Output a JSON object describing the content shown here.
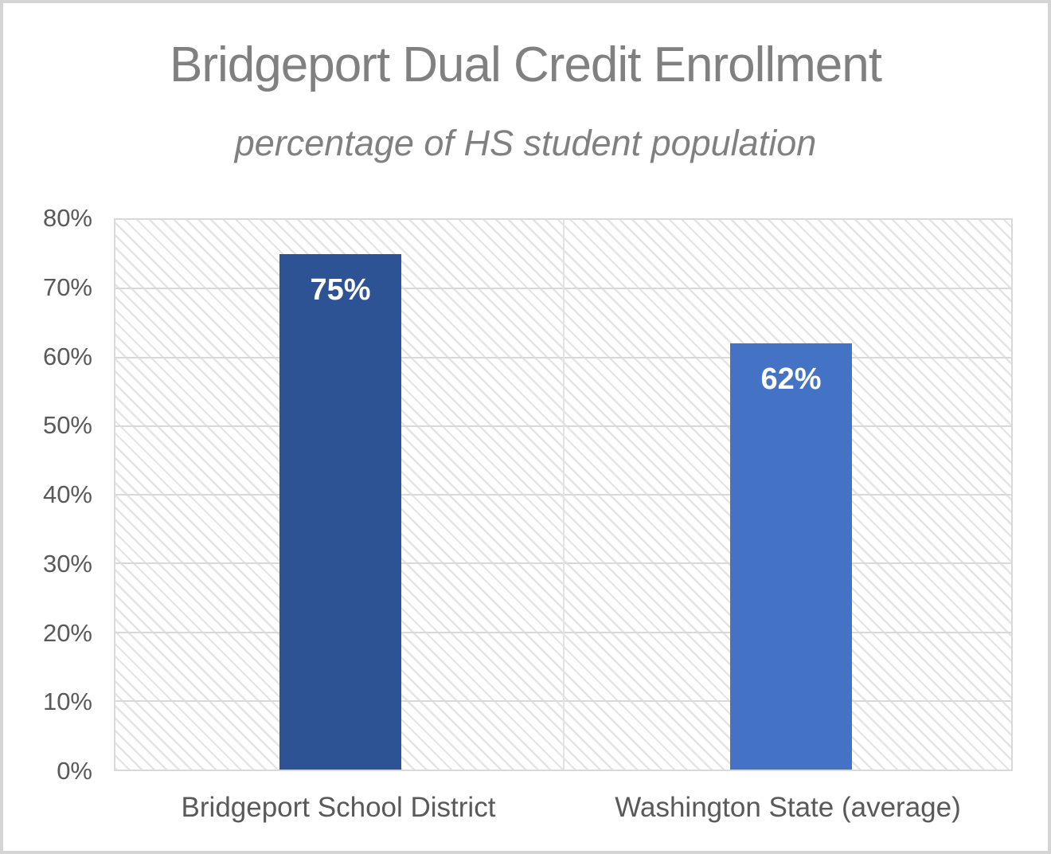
{
  "chart_data": {
    "type": "bar",
    "title": "Bridgeport Dual Credit Enrollment",
    "subtitle": "percentage of HS student population",
    "categories": [
      "Bridgeport School District",
      "Washington State (average)"
    ],
    "values": [
      75,
      62
    ],
    "value_labels": [
      "75%",
      "62%"
    ],
    "bar_colors": [
      "#2E5394",
      "#4472C4"
    ],
    "xlabel": "",
    "ylabel": "",
    "ylim": [
      0,
      80
    ],
    "ytick_step": 10,
    "ytick_labels": [
      "80%",
      "70%",
      "60%",
      "50%",
      "40%",
      "30%",
      "20%",
      "10%",
      "0%"
    ],
    "grid": true,
    "legend": false,
    "plot_pattern": "light-downward-diagonal-hatch",
    "colors": {
      "title": "#808080",
      "axis_labels": "#595959",
      "gridlines": "#D9D9D9",
      "value_labels": "#FFFFFF",
      "plot_background": "#FFFFFF"
    }
  }
}
